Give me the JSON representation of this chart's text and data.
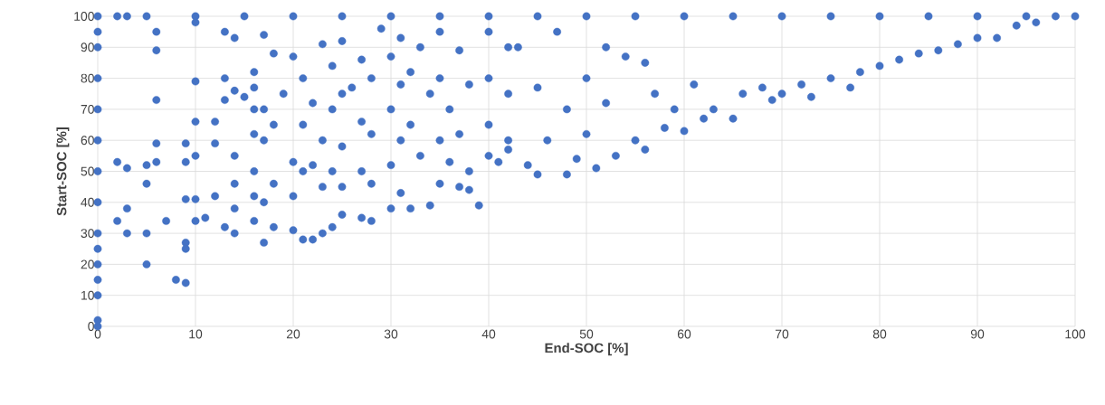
{
  "chart_data": {
    "type": "scatter",
    "xlabel": "End-SOC [%]",
    "ylabel": "Start-SOC [%]",
    "xlim": [
      0,
      100
    ],
    "ylim": [
      0,
      100
    ],
    "xticks": [
      0,
      10,
      20,
      30,
      40,
      50,
      60,
      70,
      80,
      90,
      100
    ],
    "yticks": [
      0,
      10,
      20,
      30,
      40,
      50,
      60,
      70,
      80,
      90,
      100
    ],
    "grid": true,
    "marker": "circle",
    "series": [
      {
        "color": "#4472c4",
        "x": [
          0,
          0,
          0,
          0,
          0,
          0,
          0,
          0,
          0,
          0,
          0,
          0,
          0,
          0,
          0,
          2,
          3,
          5,
          10,
          15,
          20,
          25,
          30,
          35,
          40,
          45,
          50,
          55,
          60,
          65,
          70,
          75,
          80,
          85,
          90,
          95,
          2,
          2,
          3,
          3,
          3,
          5,
          5,
          5,
          5,
          6,
          6,
          6,
          6,
          6,
          7,
          8,
          9,
          9,
          9,
          9,
          9,
          9,
          10,
          10,
          10,
          10,
          10,
          10,
          11,
          12,
          12,
          12,
          13,
          13,
          13,
          13,
          14,
          14,
          14,
          14,
          14,
          14,
          15,
          16,
          16,
          16,
          16,
          16,
          16,
          16,
          17,
          17,
          17,
          17,
          17,
          18,
          18,
          18,
          18,
          19,
          20,
          20,
          20,
          20,
          21,
          21,
          21,
          21,
          22,
          22,
          22,
          23,
          23,
          23,
          23,
          24,
          24,
          24,
          24,
          25,
          25,
          25,
          25,
          25,
          26,
          27,
          27,
          27,
          27,
          28,
          28,
          28,
          28,
          29,
          30,
          30,
          30,
          30,
          31,
          31,
          31,
          31,
          32,
          32,
          32,
          33,
          33,
          34,
          34,
          35,
          35,
          35,
          35,
          36,
          36,
          37,
          37,
          37,
          38,
          38,
          38,
          39,
          40,
          40,
          40,
          40,
          41,
          42,
          42,
          42,
          42,
          43,
          44,
          45,
          45,
          46,
          47,
          48,
          48,
          49,
          50,
          50,
          51,
          52,
          52,
          53,
          54,
          55,
          56,
          56,
          57,
          58,
          59,
          60,
          61,
          62,
          63,
          65,
          66,
          68,
          69,
          70,
          72,
          73,
          75,
          77,
          78,
          80,
          82,
          84,
          86,
          88,
          90,
          92,
          94,
          96,
          98,
          100
        ],
        "values": [
          0,
          2,
          10,
          15,
          20,
          25,
          30,
          40,
          50,
          60,
          70,
          80,
          90,
          95,
          100,
          100,
          100,
          100,
          100,
          100,
          100,
          100,
          100,
          100,
          100,
          100,
          100,
          100,
          100,
          100,
          100,
          100,
          100,
          100,
          100,
          100,
          53,
          34,
          51,
          38,
          30,
          52,
          46,
          30,
          20,
          95,
          89,
          73,
          59,
          53,
          34,
          15,
          14,
          27,
          25,
          41,
          53,
          59,
          98,
          79,
          66,
          55,
          41,
          34,
          35,
          42,
          59,
          66,
          95,
          80,
          73,
          32,
          93,
          76,
          55,
          46,
          38,
          30,
          74,
          82,
          77,
          70,
          62,
          50,
          42,
          34,
          94,
          70,
          60,
          40,
          27,
          88,
          65,
          46,
          32,
          75,
          87,
          53,
          42,
          31,
          80,
          65,
          50,
          28,
          72,
          52,
          28,
          91,
          60,
          45,
          30,
          84,
          70,
          50,
          32,
          92,
          75,
          58,
          45,
          36,
          77,
          86,
          66,
          50,
          35,
          80,
          62,
          46,
          34,
          96,
          87,
          70,
          52,
          38,
          93,
          78,
          60,
          43,
          82,
          65,
          38,
          90,
          55,
          75,
          39,
          95,
          80,
          60,
          46,
          70,
          53,
          89,
          62,
          45,
          78,
          50,
          44,
          39,
          95,
          80,
          65,
          55,
          53,
          90,
          75,
          60,
          57,
          90,
          52,
          77,
          49,
          60,
          95,
          70,
          49,
          54,
          80,
          62,
          51,
          72,
          90,
          55,
          87,
          60,
          57,
          85,
          75,
          64,
          70,
          63,
          78,
          67,
          70,
          67,
          75,
          77,
          73,
          75,
          78,
          74,
          80,
          77,
          82,
          84,
          86,
          88,
          89,
          91,
          93,
          93,
          97,
          98,
          100,
          100
        ]
      }
    ]
  }
}
